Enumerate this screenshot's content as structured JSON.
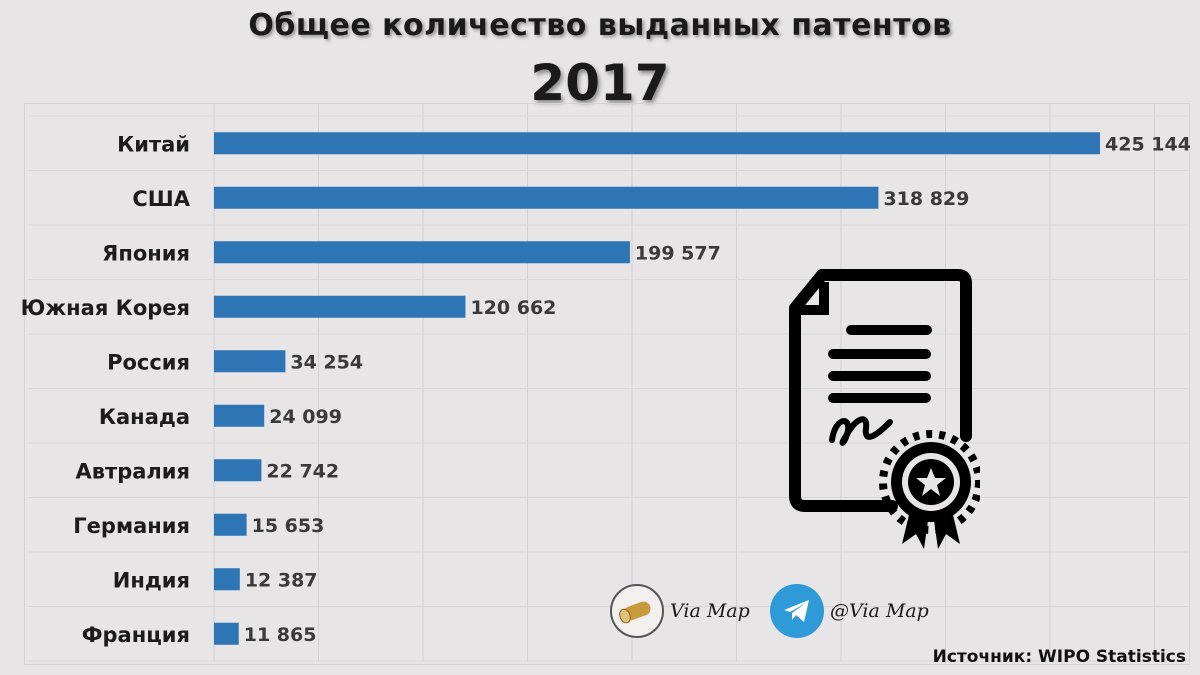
{
  "header": {
    "title": "Общее количество выданных патентов",
    "year": "2017"
  },
  "chart_data": {
    "type": "bar",
    "orientation": "horizontal",
    "title": "Общее количество выданных патентов",
    "subtitle": "2017",
    "xlabel": "",
    "ylabel": "",
    "xlim": [
      0,
      450000
    ],
    "grid": true,
    "bar_color": "#2e75b6",
    "categories": [
      "Китай",
      "США",
      "Япония",
      "Южная Корея",
      "Россия",
      "Канада",
      "Автралия",
      "Германия",
      "Индия",
      "Франция"
    ],
    "values": [
      425144,
      318829,
      199577,
      120662,
      34254,
      24099,
      22742,
      15653,
      12387,
      11865
    ],
    "value_labels": [
      "425 144",
      "318 829",
      "199 577",
      "120 662",
      "34 254",
      "24 099",
      "22 742",
      "15 653",
      "12 387",
      "11 865"
    ]
  },
  "logos": {
    "via_map": "Via Map",
    "telegram": "@Via Map"
  },
  "icons": {
    "document": "certificate-document-icon",
    "scroll": "scroll-icon",
    "telegram": "telegram-icon"
  },
  "footer": {
    "source": "Источник: WIPO Statistics"
  }
}
